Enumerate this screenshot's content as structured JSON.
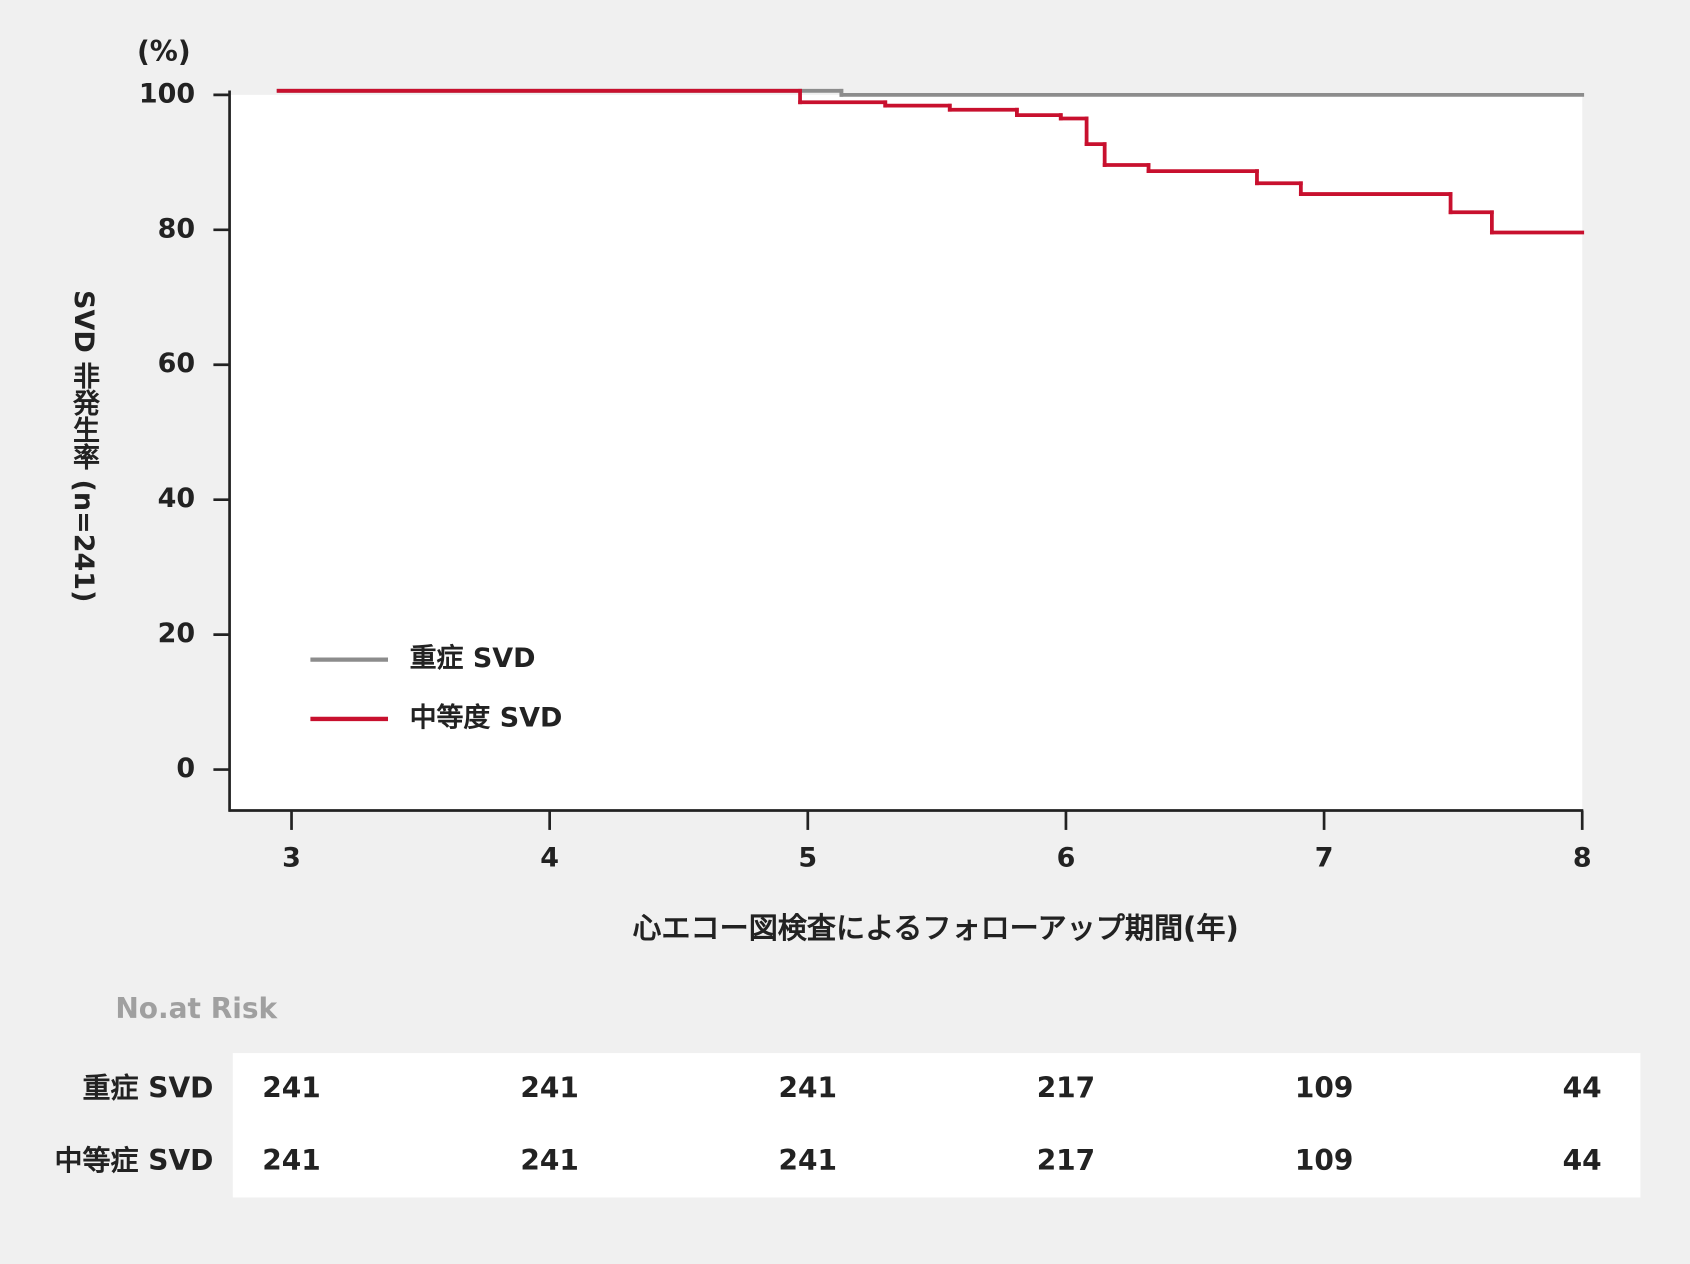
{
  "chart_data": {
    "type": "step",
    "y_unit": "(%)",
    "y_label": "SVD 非発生率 (n=241)",
    "x_label": "心エコー図検査によるフォローアップ期間(年)",
    "xlim": [
      2.76,
      8
    ],
    "xticks": [
      3,
      4,
      5,
      6,
      7,
      8
    ],
    "ylim": [
      -6.07,
      100
    ],
    "yticks": [
      0,
      20,
      40,
      60,
      80,
      100
    ],
    "legend": "lower left",
    "series": [
      {
        "name": "重症 SVD",
        "color": "#8c8c8c",
        "x": [
          2.95,
          5.13,
          8
        ],
        "values": [
          100.6,
          100,
          100
        ]
      },
      {
        "name": "中等度 SVD",
        "color": "#c8102e",
        "x": [
          2.95,
          4.97,
          5.3,
          5.55,
          5.81,
          5.98,
          6.08,
          6.15,
          6.32,
          6.74,
          6.91,
          7.49,
          7.65,
          8
        ],
        "values": [
          100.6,
          98.9,
          98.4,
          97.8,
          97,
          96.5,
          92.7,
          89.6,
          88.7,
          86.9,
          85.3,
          82.6,
          79.6,
          79.6
        ]
      }
    ]
  },
  "risk_table": {
    "title": "No.at Risk",
    "rows": [
      {
        "label": "重症 SVD",
        "values": [
          241,
          241,
          241,
          217,
          109,
          44
        ]
      },
      {
        "label": "中等症 SVD",
        "values": [
          241,
          241,
          241,
          217,
          109,
          44
        ]
      }
    ]
  }
}
